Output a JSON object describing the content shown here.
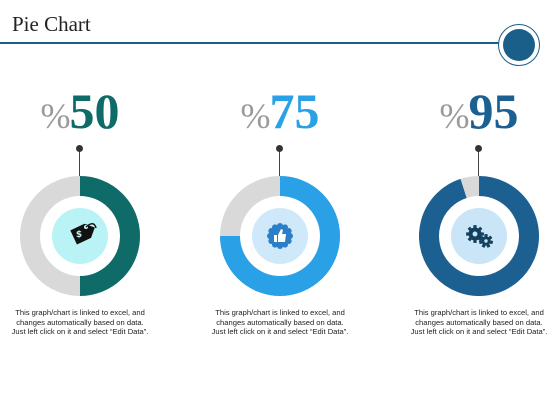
{
  "title": "Pie Chart",
  "colors": {
    "rule": "#1a5e8a",
    "track": "#d9d9d9"
  },
  "chart_data": [
    {
      "type": "pie",
      "label": "%50",
      "value": 50,
      "max": 100,
      "color": "#0f6b68",
      "center_color": "#b9f3f5",
      "icon": "price-tag-icon",
      "description": "This graph/chart is linked to excel, and changes automatically based on data. Just left click on it and select “Edit Data”."
    },
    {
      "type": "pie",
      "label": "%75",
      "value": 75,
      "max": 100,
      "color": "#2aa0e6",
      "center_color": "#cfe9fa",
      "icon": "thumbs-up-badge-icon",
      "description": "This graph/chart is linked to excel, and changes automatically based on data. Just left click on it and select “Edit Data”."
    },
    {
      "type": "pie",
      "label": "%95",
      "value": 95,
      "max": 100,
      "color": "#1c6092",
      "center_color": "#c9e5f7",
      "icon": "gears-icon",
      "description": "This graph/chart is linked to excel, and changes automatically based on data. Just left click on it and select “Edit Data”."
    }
  ]
}
